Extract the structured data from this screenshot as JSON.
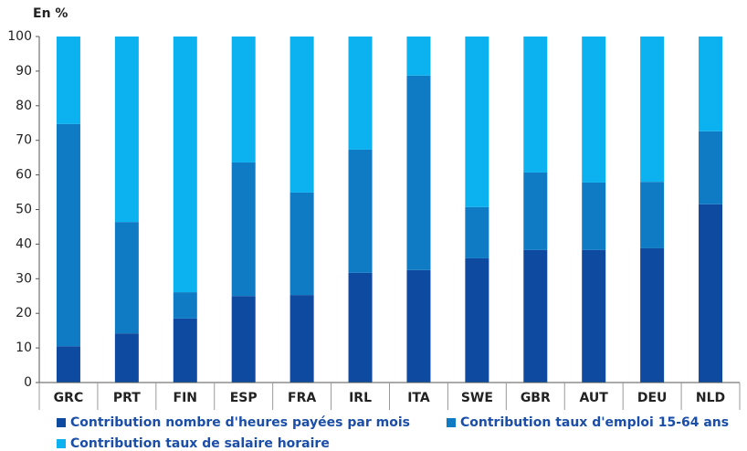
{
  "chart_data": {
    "type": "stacked_bar",
    "title": "En %",
    "categories": [
      "GRC",
      "PRT",
      "FIN",
      "ESP",
      "FRA",
      "IRL",
      "ITA",
      "SWE",
      "GBR",
      "AUT",
      "DEU",
      "NLD"
    ],
    "series": [
      {
        "name": "Contribution nombre d'heures payées par mois",
        "color": "#0d4aa0",
        "values": [
          10.5,
          14.2,
          18.5,
          25.0,
          25.3,
          31.7,
          32.5,
          35.9,
          38.3,
          38.3,
          38.8,
          51.5
        ]
      },
      {
        "name": "Contribution taux d'emploi 15-64 ans",
        "color": "#0f7bc4",
        "values": [
          64.2,
          32.2,
          7.6,
          38.6,
          29.6,
          35.6,
          56.2,
          14.8,
          22.4,
          19.5,
          19.2,
          21.1
        ]
      },
      {
        "name": "Contribution taux de salaire horaire",
        "color": "#0cb1ef",
        "values": [
          25.3,
          53.6,
          73.9,
          36.4,
          45.1,
          32.7,
          11.3,
          49.3,
          39.3,
          42.2,
          42.0,
          27.4
        ]
      }
    ],
    "ylim": [
      0,
      100
    ],
    "yticks": [
      0,
      10,
      20,
      30,
      40,
      50,
      60,
      70,
      80,
      90,
      100
    ]
  }
}
